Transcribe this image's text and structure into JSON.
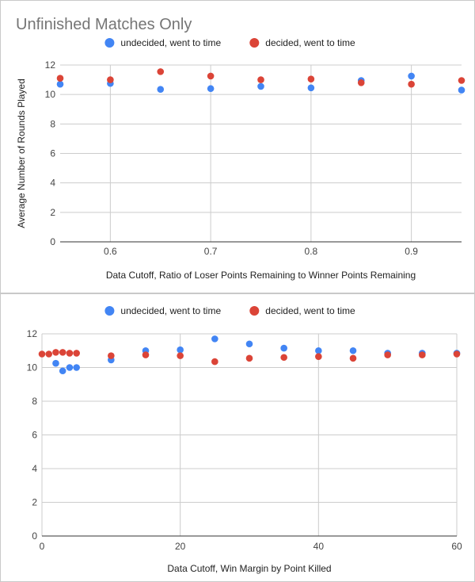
{
  "chart_data": [
    {
      "type": "scatter",
      "title": "Unfinished Matches Only",
      "xlabel": "Data Cutoff, Ratio of Loser Points Remaining to Winner Points Remaining",
      "ylabel": "Average Number of Rounds Played",
      "xlim": [
        0.55,
        0.95
      ],
      "ylim": [
        0,
        12
      ],
      "xticks": [
        0.6,
        0.7,
        0.8,
        0.9
      ],
      "xtick_labels": [
        "0.6",
        "0.7",
        "0.8",
        "0.9"
      ],
      "yticks": [
        0,
        2,
        4,
        6,
        8,
        10,
        12
      ],
      "ytick_labels": [
        "0",
        "2",
        "4",
        "6",
        "8",
        "10",
        "12"
      ],
      "grid": "vertical and horizontal",
      "legend_position": "top-center",
      "series": [
        {
          "name": "undecided, went to time",
          "color": "#4285f4",
          "x": [
            0.55,
            0.6,
            0.65,
            0.7,
            0.75,
            0.8,
            0.85,
            0.9,
            0.95
          ],
          "y": [
            10.7,
            10.75,
            10.35,
            10.4,
            10.55,
            10.45,
            10.95,
            11.25,
            10.3
          ]
        },
        {
          "name": "decided, went to time",
          "color": "#db4437",
          "x": [
            0.55,
            0.6,
            0.65,
            0.7,
            0.75,
            0.8,
            0.85,
            0.9,
            0.95
          ],
          "y": [
            11.1,
            11.0,
            11.55,
            11.25,
            11.0,
            11.05,
            10.8,
            10.7,
            10.95
          ]
        }
      ]
    },
    {
      "type": "scatter",
      "title": "",
      "xlabel": "Data Cutoff, Win Margin by Point Killed",
      "ylabel": "",
      "xlim": [
        0,
        60
      ],
      "ylim": [
        0,
        12
      ],
      "xticks": [
        0,
        20,
        40,
        60
      ],
      "xtick_labels": [
        "0",
        "20",
        "40",
        "60"
      ],
      "yticks": [
        0,
        2,
        4,
        6,
        8,
        10,
        12
      ],
      "ytick_labels": [
        "0",
        "2",
        "4",
        "6",
        "8",
        "10",
        "12"
      ],
      "grid": "vertical and horizontal",
      "legend_position": "top-center",
      "series": [
        {
          "name": "undecided, went to time",
          "color": "#4285f4",
          "x": [
            2,
            3,
            4,
            5,
            10,
            15,
            20,
            25,
            30,
            35,
            40,
            45,
            50,
            55,
            60
          ],
          "y": [
            10.25,
            9.8,
            10.0,
            10.0,
            10.45,
            11.0,
            11.05,
            11.7,
            11.4,
            11.15,
            11.0,
            11.0,
            10.85,
            10.85,
            10.85
          ]
        },
        {
          "name": "decided, went to time",
          "color": "#db4437",
          "x": [
            0,
            1,
            2,
            3,
            4,
            5,
            10,
            15,
            20,
            25,
            30,
            35,
            40,
            45,
            50,
            55,
            60
          ],
          "y": [
            10.8,
            10.8,
            10.9,
            10.9,
            10.85,
            10.85,
            10.7,
            10.75,
            10.7,
            10.35,
            10.55,
            10.6,
            10.65,
            10.55,
            10.75,
            10.75,
            10.8
          ]
        }
      ]
    }
  ]
}
